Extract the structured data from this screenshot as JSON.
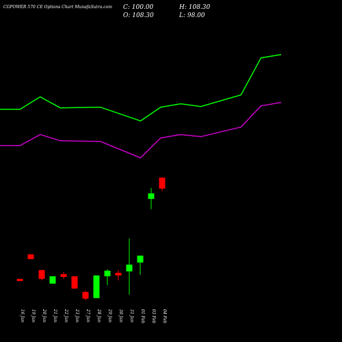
{
  "chart_data": {
    "type": "candlestick",
    "title": "CGPOWER 570 CE Options Chart MunafaSutra.com",
    "ohlc_text": [
      "C: 100.00",
      "H: 108.30",
      "O: 108.30",
      "L: 98.00"
    ],
    "categories": [
      "16 Jan",
      "19 Jan",
      "20 Jan",
      "21 Jan",
      "22 Jan",
      "23 Jan",
      "27 Jan",
      "28 Jan",
      "29 Jan",
      "30 Jan",
      "31 Jan",
      "01 Feb",
      "03 Feb",
      "04 Feb"
    ],
    "open": [
      31.7,
      50.3,
      38.4,
      28.1,
      35.3,
      33.7,
      21.8,
      17.2,
      33.7,
      36.3,
      37.4,
      44.1,
      92.2,
      108.3
    ],
    "high": [
      31.7,
      50.3,
      38.4,
      33.7,
      36.9,
      33.7,
      22.9,
      34.3,
      38.9,
      38.4,
      62.2,
      49.3,
      100.5,
      108.3
    ],
    "low": [
      30.1,
      46.7,
      30.6,
      28.1,
      31.7,
      24.4,
      15.6,
      17.2,
      27.0,
      30.6,
      19.8,
      34.8,
      84.5,
      98.0
    ],
    "close": [
      30.1,
      46.7,
      31.7,
      33.7,
      33.2,
      24.4,
      16.7,
      34.3,
      37.9,
      34.3,
      42.5,
      49.3,
      96.4,
      100.0
    ],
    "up_color": "#00ff00",
    "down_color": "#ff0000",
    "ylim": [
      15,
      222
    ],
    "xlim": [
      0,
      14
    ],
    "series": [
      {
        "color": "#00ff00",
        "x": [
          0,
          1,
          2,
          3,
          5,
          7,
          8,
          9,
          10,
          12,
          13,
          14
        ],
        "values": [
          160.0,
          160.0,
          169.4,
          161.1,
          161.6,
          151.2,
          161.6,
          164.2,
          162.1,
          170.9,
          198.9,
          201.4
        ]
      },
      {
        "color": "#cc00cc",
        "x": [
          0,
          1,
          2,
          3,
          5,
          7,
          8,
          9,
          10,
          12,
          13,
          14
        ],
        "values": [
          132.6,
          132.6,
          140.9,
          136.2,
          135.7,
          123.3,
          138.3,
          140.9,
          139.3,
          146.6,
          162.6,
          165.2
        ]
      }
    ]
  }
}
